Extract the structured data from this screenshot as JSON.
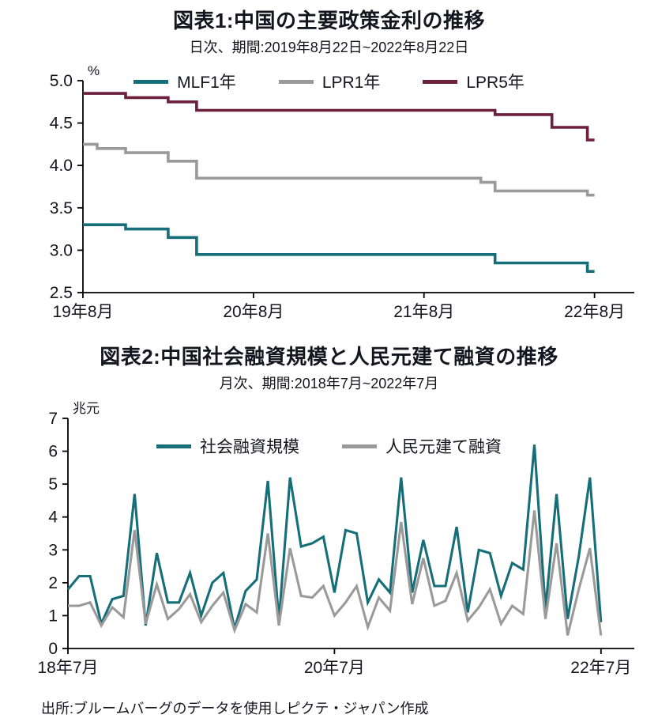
{
  "page": {
    "background": "#ffffff",
    "source_note": "出所:ブルームバーグのデータを使用しピクテ・ジャパン作成"
  },
  "colors": {
    "teal": "#156e78",
    "gray": "#9a9a9a",
    "wine": "#6d1f3d",
    "text": "#15151f",
    "axis": "#000000"
  },
  "chart_data": [
    {
      "type": "line",
      "line_style": "step",
      "title": "図表1:中国の主要政策金利の推移",
      "subtitle": "日次、期間:2019年8月22日~2022年8月22日",
      "unit_label": "%",
      "x_unit": "months since 2019-08",
      "xlim": [
        0,
        38.8
      ],
      "ylim": [
        2.5,
        5.0
      ],
      "grid": false,
      "legend_position": "top-center",
      "yticks": [
        {
          "value": 5.0,
          "label": "5.0"
        },
        {
          "value": 4.5,
          "label": "4.5"
        },
        {
          "value": 4.0,
          "label": "4.0"
        },
        {
          "value": 3.5,
          "label": "3.5"
        },
        {
          "value": 3.0,
          "label": "3.0"
        },
        {
          "value": 2.5,
          "label": "2.5"
        }
      ],
      "xticks": [
        {
          "pos": 0,
          "label": "19年8月"
        },
        {
          "pos": 12,
          "label": "20年8月"
        },
        {
          "pos": 24,
          "label": "21年8月"
        },
        {
          "pos": 36,
          "label": "22年8月"
        }
      ],
      "series": [
        {
          "name": "MLF1年",
          "color": "#156e78",
          "points": [
            [
              0,
              3.3
            ],
            [
              3,
              3.3
            ],
            [
              3,
              3.25
            ],
            [
              6,
              3.25
            ],
            [
              6,
              3.15
            ],
            [
              8,
              3.15
            ],
            [
              8,
              2.95
            ],
            [
              29,
              2.95
            ],
            [
              29,
              2.85
            ],
            [
              35.5,
              2.85
            ],
            [
              35.5,
              2.75
            ],
            [
              36,
              2.75
            ]
          ]
        },
        {
          "name": "LPR1年",
          "color": "#9a9a9a",
          "points": [
            [
              0,
              4.25
            ],
            [
              1,
              4.25
            ],
            [
              1,
              4.2
            ],
            [
              3,
              4.2
            ],
            [
              3,
              4.15
            ],
            [
              6,
              4.15
            ],
            [
              6,
              4.05
            ],
            [
              8,
              4.05
            ],
            [
              8,
              3.85
            ],
            [
              28,
              3.85
            ],
            [
              28,
              3.8
            ],
            [
              29,
              3.8
            ],
            [
              29,
              3.7
            ],
            [
              35.5,
              3.7
            ],
            [
              35.5,
              3.65
            ],
            [
              36,
              3.65
            ]
          ]
        },
        {
          "name": "LPR5年",
          "color": "#6d1f3d",
          "points": [
            [
              0,
              4.85
            ],
            [
              3,
              4.85
            ],
            [
              3,
              4.8
            ],
            [
              6,
              4.8
            ],
            [
              6,
              4.75
            ],
            [
              8,
              4.75
            ],
            [
              8,
              4.65
            ],
            [
              29,
              4.65
            ],
            [
              29,
              4.6
            ],
            [
              33,
              4.6
            ],
            [
              33,
              4.45
            ],
            [
              35.5,
              4.45
            ],
            [
              35.5,
              4.3
            ],
            [
              36,
              4.3
            ]
          ]
        }
      ]
    },
    {
      "type": "line",
      "line_style": "linear",
      "title": "図表2:中国社会融資規模と人民元建て融資の推移",
      "subtitle": "月次、期間:2018年7月~2022年7月",
      "unit_label": "兆元",
      "x_unit": "months since 2018-07",
      "xlim": [
        0,
        51
      ],
      "ylim": [
        0,
        7
      ],
      "grid": false,
      "legend_position": "top-center",
      "yticks": [
        {
          "value": 7,
          "label": "7"
        },
        {
          "value": 6,
          "label": "6"
        },
        {
          "value": 5,
          "label": "5"
        },
        {
          "value": 4,
          "label": "4"
        },
        {
          "value": 3,
          "label": "3"
        },
        {
          "value": 2,
          "label": "2"
        },
        {
          "value": 1,
          "label": "1"
        },
        {
          "value": 0,
          "label": "0"
        }
      ],
      "xticks": [
        {
          "pos": 0,
          "label": "18年7月"
        },
        {
          "pos": 24,
          "label": "20年7月"
        },
        {
          "pos": 48,
          "label": "22年7月"
        }
      ],
      "series": [
        {
          "name": "社会融資規模",
          "color": "#156e78",
          "values": [
            1.8,
            2.2,
            2.2,
            0.75,
            1.5,
            1.6,
            4.7,
            0.7,
            2.9,
            1.4,
            1.4,
            2.3,
            1.0,
            2.0,
            2.3,
            0.6,
            1.75,
            2.1,
            5.1,
            0.85,
            5.2,
            3.1,
            3.2,
            3.4,
            1.7,
            3.6,
            3.5,
            1.4,
            2.1,
            1.7,
            5.2,
            1.7,
            3.3,
            1.9,
            1.9,
            3.7,
            1.1,
            3.0,
            2.9,
            1.6,
            2.6,
            2.4,
            6.2,
            1.2,
            4.7,
            0.9,
            2.8,
            5.2,
            0.8
          ]
        },
        {
          "name": "人民元建て融資",
          "color": "#9a9a9a",
          "values": [
            1.3,
            1.3,
            1.4,
            0.7,
            1.25,
            0.95,
            3.6,
            0.75,
            1.95,
            0.9,
            1.2,
            1.65,
            0.8,
            1.3,
            1.7,
            0.55,
            1.35,
            1.1,
            3.5,
            0.7,
            3.05,
            1.6,
            1.55,
            1.9,
            1.0,
            1.4,
            1.9,
            0.65,
            1.55,
            1.15,
            3.85,
            1.35,
            2.75,
            1.3,
            1.45,
            2.3,
            0.85,
            1.25,
            1.8,
            0.75,
            1.3,
            1.05,
            4.2,
            0.9,
            3.2,
            0.4,
            1.8,
            3.05,
            0.4
          ]
        }
      ]
    }
  ]
}
